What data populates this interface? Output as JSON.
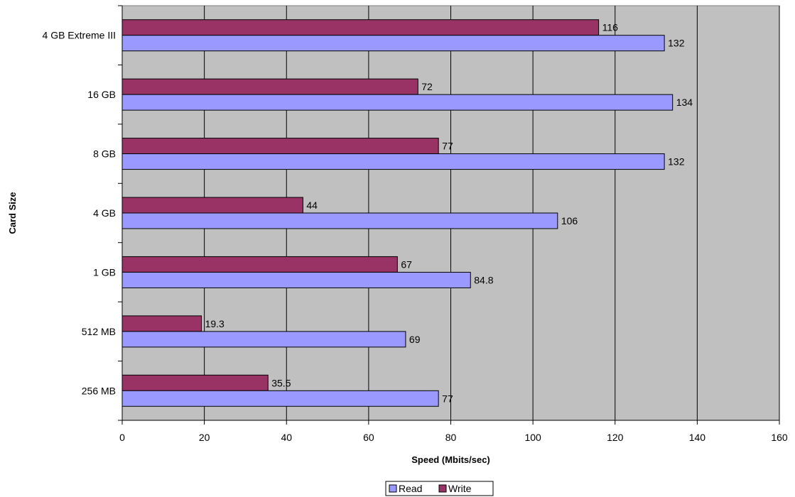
{
  "chart_data": {
    "type": "bar",
    "orientation": "horizontal",
    "categories": [
      "4 GB Extreme III",
      "16 GB",
      "8 GB",
      "4 GB",
      "1 GB",
      "512 MB",
      "256 MB"
    ],
    "series": [
      {
        "name": "Write",
        "values": [
          116,
          72,
          77,
          44,
          67,
          19.3,
          35.5
        ],
        "labels": [
          "116",
          "72",
          "77",
          "44",
          "67",
          "19.3",
          "35.5"
        ],
        "color": "#993366"
      },
      {
        "name": "Read",
        "values": [
          132,
          134,
          132,
          106,
          84.8,
          69,
          77
        ],
        "labels": [
          "132",
          "134",
          "132",
          "106",
          "84.8",
          "69",
          "77"
        ],
        "color": "#9999ff"
      }
    ],
    "xlabel": "Speed (Mbits/sec)",
    "ylabel": "Card Size",
    "xlim": [
      0,
      160
    ],
    "xticks": [
      0,
      20,
      40,
      60,
      80,
      100,
      120,
      140,
      160
    ],
    "xtick_labels": [
      "0",
      "20",
      "40",
      "60",
      "80",
      "100",
      "120",
      "140",
      "160"
    ],
    "grid": true,
    "plot_background": "#c0c0c0",
    "legend": {
      "position": "bottom",
      "items": [
        {
          "name": "Read",
          "color": "#9999ff"
        },
        {
          "name": "Write",
          "color": "#993366"
        }
      ]
    }
  }
}
